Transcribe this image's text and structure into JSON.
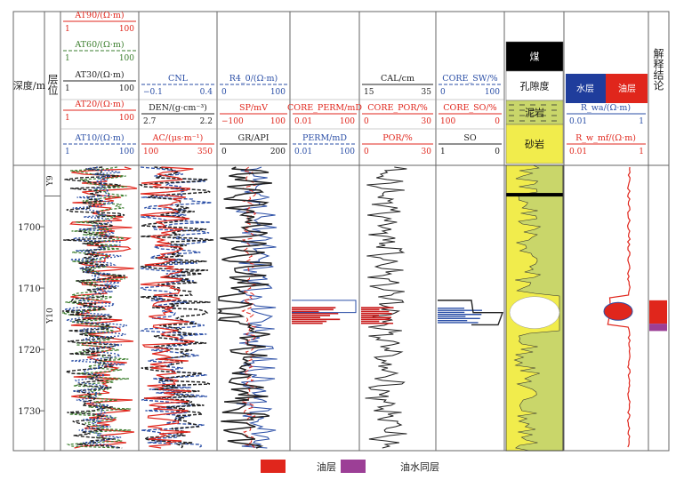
{
  "chart_data": {
    "type": "line",
    "title": "",
    "depth_axis": {
      "label": "深度/m",
      "range": [
        1690,
        1736.5
      ],
      "ticks": [
        1700,
        1710,
        1720,
        1730
      ]
    },
    "zone_column": {
      "label": "层位",
      "zones": [
        {
          "name": "Y9",
          "top": 1690,
          "base": 1695
        },
        {
          "name": "Y10",
          "top": 1695,
          "base": 1736.5
        }
      ]
    },
    "tracks": [
      {
        "id": "resistivity",
        "curves": [
          {
            "name": "AT90/(Ω·m)",
            "min": "1",
            "max": "100",
            "color": "#e0261c"
          },
          {
            "name": "AT60/(Ω·m)",
            "min": "1",
            "max": "100",
            "color": "#3a7d2c"
          },
          {
            "name": "AT30/(Ω·m)",
            "min": "1",
            "max": "100",
            "color": "#222222"
          },
          {
            "name": "AT20/(Ω·m)",
            "min": "1",
            "max": "100",
            "color": "#e0261c"
          },
          {
            "name": "AT10/(Ω·m)",
            "min": "1",
            "max": "100",
            "color": "#2a4ea6"
          }
        ]
      },
      {
        "id": "porosity_logs",
        "curves": [
          {
            "name": "CNL",
            "min": "−0.1",
            "max": "0.4",
            "color": "#2a4ea6"
          },
          {
            "name": "DEN/(g·cm⁻³)",
            "min": "2.7",
            "max": "2.2",
            "color": "#222222"
          },
          {
            "name": "AC/(μs·m⁻¹)",
            "min": "100",
            "max": "350",
            "color": "#e0261c"
          }
        ]
      },
      {
        "id": "lithology_logs",
        "curves": [
          {
            "name": "R4_0/(Ω·m)",
            "min": "0",
            "max": "100",
            "color": "#2a4ea6"
          },
          {
            "name": "SP/mV",
            "min": "−100",
            "max": "100",
            "color": "#e0261c"
          },
          {
            "name": "GR/API",
            "min": "0",
            "max": "200",
            "color": "#222222"
          }
        ]
      },
      {
        "id": "permeability",
        "curves": [
          {
            "name": "CORE_PERM/mD",
            "min": "0.01",
            "max": "100",
            "color": "#e0261c"
          },
          {
            "name": "PERM/mD",
            "min": "0.01",
            "max": "100",
            "color": "#2a4ea6"
          }
        ]
      },
      {
        "id": "porosity",
        "curves": [
          {
            "name": "CAL/cm",
            "min": "15",
            "max": "35",
            "color": "#222222"
          },
          {
            "name": "CORE_POR/%",
            "min": "0",
            "max": "30",
            "color": "#e0261c"
          },
          {
            "name": "POR/%",
            "min": "0",
            "max": "30",
            "color": "#e0261c"
          }
        ]
      },
      {
        "id": "saturation",
        "curves": [
          {
            "name": "CORE_SW/%",
            "min": "0",
            "max": "100",
            "color": "#2a4ea6"
          },
          {
            "name": "CORE_SO/%",
            "min": "100",
            "max": "0",
            "color": "#e0261c"
          },
          {
            "name": "SO",
            "min": "1",
            "max": "0",
            "color": "#222222"
          }
        ]
      },
      {
        "id": "lithology_column",
        "legend": [
          {
            "name": "煤",
            "color": "#000000"
          },
          {
            "name": "孔隙度",
            "color": "#ffffff"
          },
          {
            "name": "泥岩",
            "color": "#c9d66a"
          },
          {
            "name": "砂岩",
            "color": "#f1ec4c"
          }
        ]
      },
      {
        "id": "mobility",
        "legend": [
          {
            "name": "水层",
            "color": "#1f3d9c"
          },
          {
            "name": "油层",
            "color": "#e0261c"
          }
        ],
        "curves": [
          {
            "name": "R_wa/(Ω·m)",
            "min": "0.01",
            "max": "1",
            "color": "#2a4ea6"
          },
          {
            "name": "R_w_mf/(Ω·m)",
            "min": "0.01",
            "max": "1",
            "color": "#e0261c"
          }
        ]
      },
      {
        "id": "interpretation",
        "label": "解释结论",
        "intervals": [
          {
            "type": "油层",
            "top": 1712.0,
            "base": 1715.8
          },
          {
            "type": "油水同层",
            "top": 1715.8,
            "base": 1717.0
          }
        ]
      }
    ],
    "legend": [
      {
        "name": "油层",
        "color": "#e0261c"
      },
      {
        "name": "油水同层",
        "color": "#9c3f96"
      }
    ]
  }
}
